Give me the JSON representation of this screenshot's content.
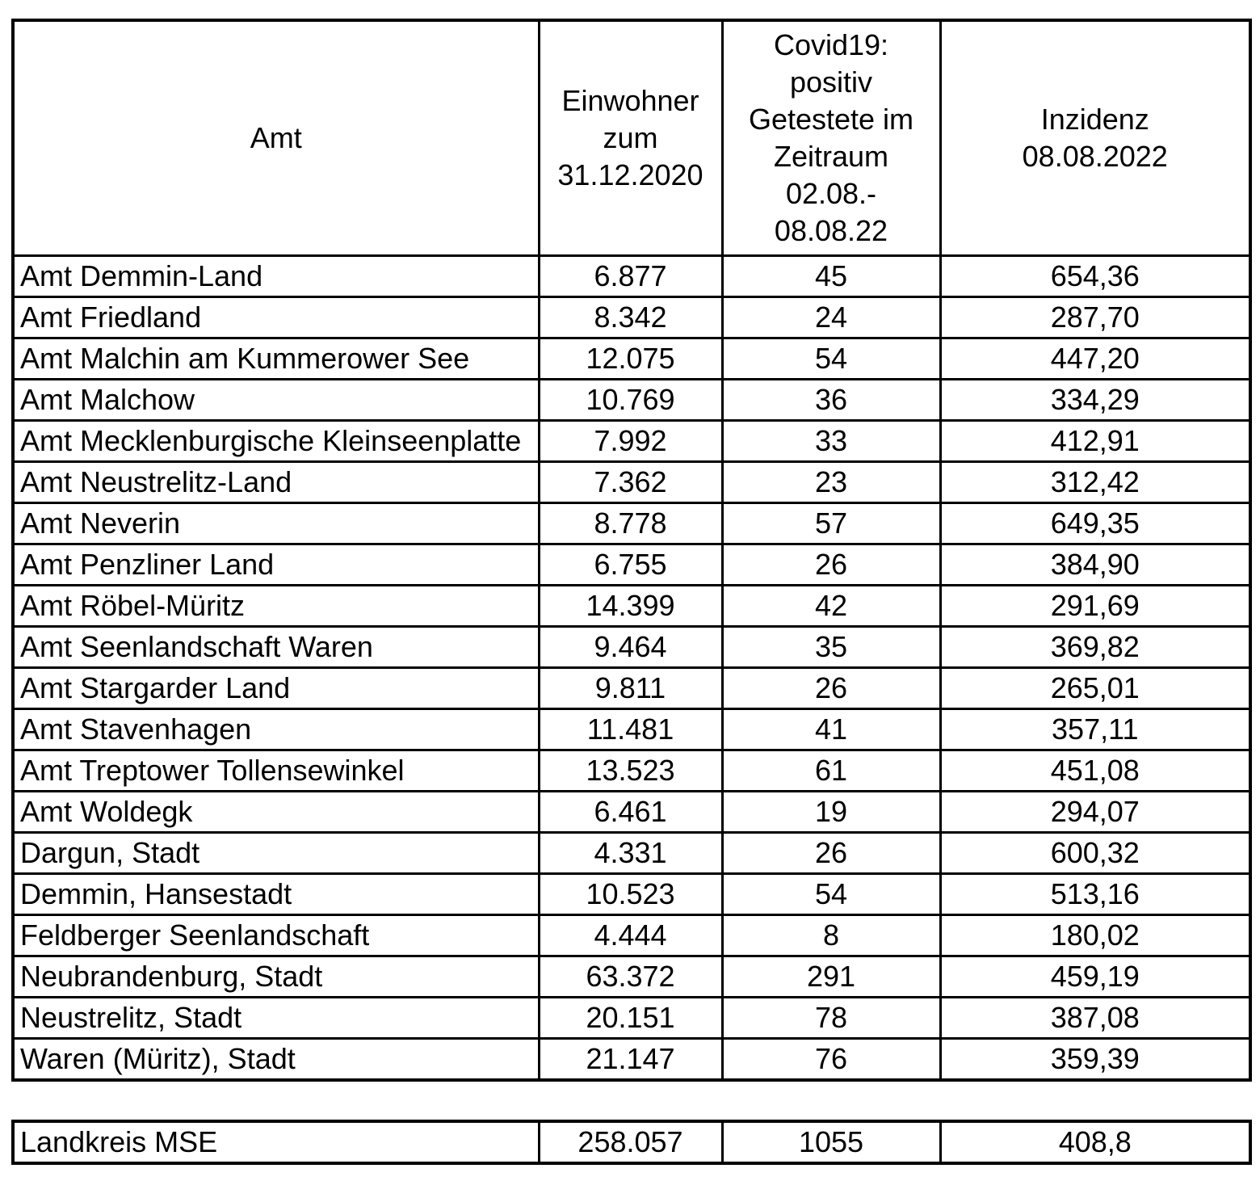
{
  "table": {
    "headers": {
      "amt": "Amt",
      "einwohner": "Einwohner\nzum\n31.12.2020",
      "covid": "Covid19:\npositiv\nGetestete im\nZeitraum\n02.08.-\n08.08.22",
      "inzidenz": "Inzidenz\n08.08.2022"
    },
    "rows": [
      [
        "Amt Demmin-Land",
        "6.877",
        "45",
        "654,36"
      ],
      [
        "Amt Friedland",
        "8.342",
        "24",
        "287,70"
      ],
      [
        "Amt Malchin am Kummerower See",
        "12.075",
        "54",
        "447,20"
      ],
      [
        "Amt Malchow",
        "10.769",
        "36",
        "334,29"
      ],
      [
        "Amt Mecklenburgische Kleinseenplatte",
        "7.992",
        "33",
        "412,91"
      ],
      [
        "Amt Neustrelitz-Land",
        "7.362",
        "23",
        "312,42"
      ],
      [
        "Amt Neverin",
        "8.778",
        "57",
        "649,35"
      ],
      [
        "Amt Penzliner Land",
        "6.755",
        "26",
        "384,90"
      ],
      [
        "Amt Röbel-Müritz",
        "14.399",
        "42",
        "291,69"
      ],
      [
        "Amt Seenlandschaft Waren",
        "9.464",
        "35",
        "369,82"
      ],
      [
        "Amt Stargarder Land",
        "9.811",
        "26",
        "265,01"
      ],
      [
        "Amt Stavenhagen",
        "11.481",
        "41",
        "357,11"
      ],
      [
        "Amt Treptower Tollensewinkel",
        "13.523",
        "61",
        "451,08"
      ],
      [
        "Amt Woldegk",
        "6.461",
        "19",
        "294,07"
      ],
      [
        "Dargun, Stadt",
        "4.331",
        "26",
        "600,32"
      ],
      [
        "Demmin, Hansestadt",
        "10.523",
        "54",
        "513,16"
      ],
      [
        "Feldberger Seenlandschaft",
        "4.444",
        "8",
        "180,02"
      ],
      [
        "Neubrandenburg, Stadt",
        "63.372",
        "291",
        "459,19"
      ],
      [
        "Neustrelitz, Stadt",
        "20.151",
        "78",
        "387,08"
      ],
      [
        "Waren (Müritz), Stadt",
        "21.147",
        "76",
        "359,39"
      ]
    ],
    "summary": [
      "Landkreis MSE",
      "258.057",
      "1055",
      "408,8"
    ]
  }
}
